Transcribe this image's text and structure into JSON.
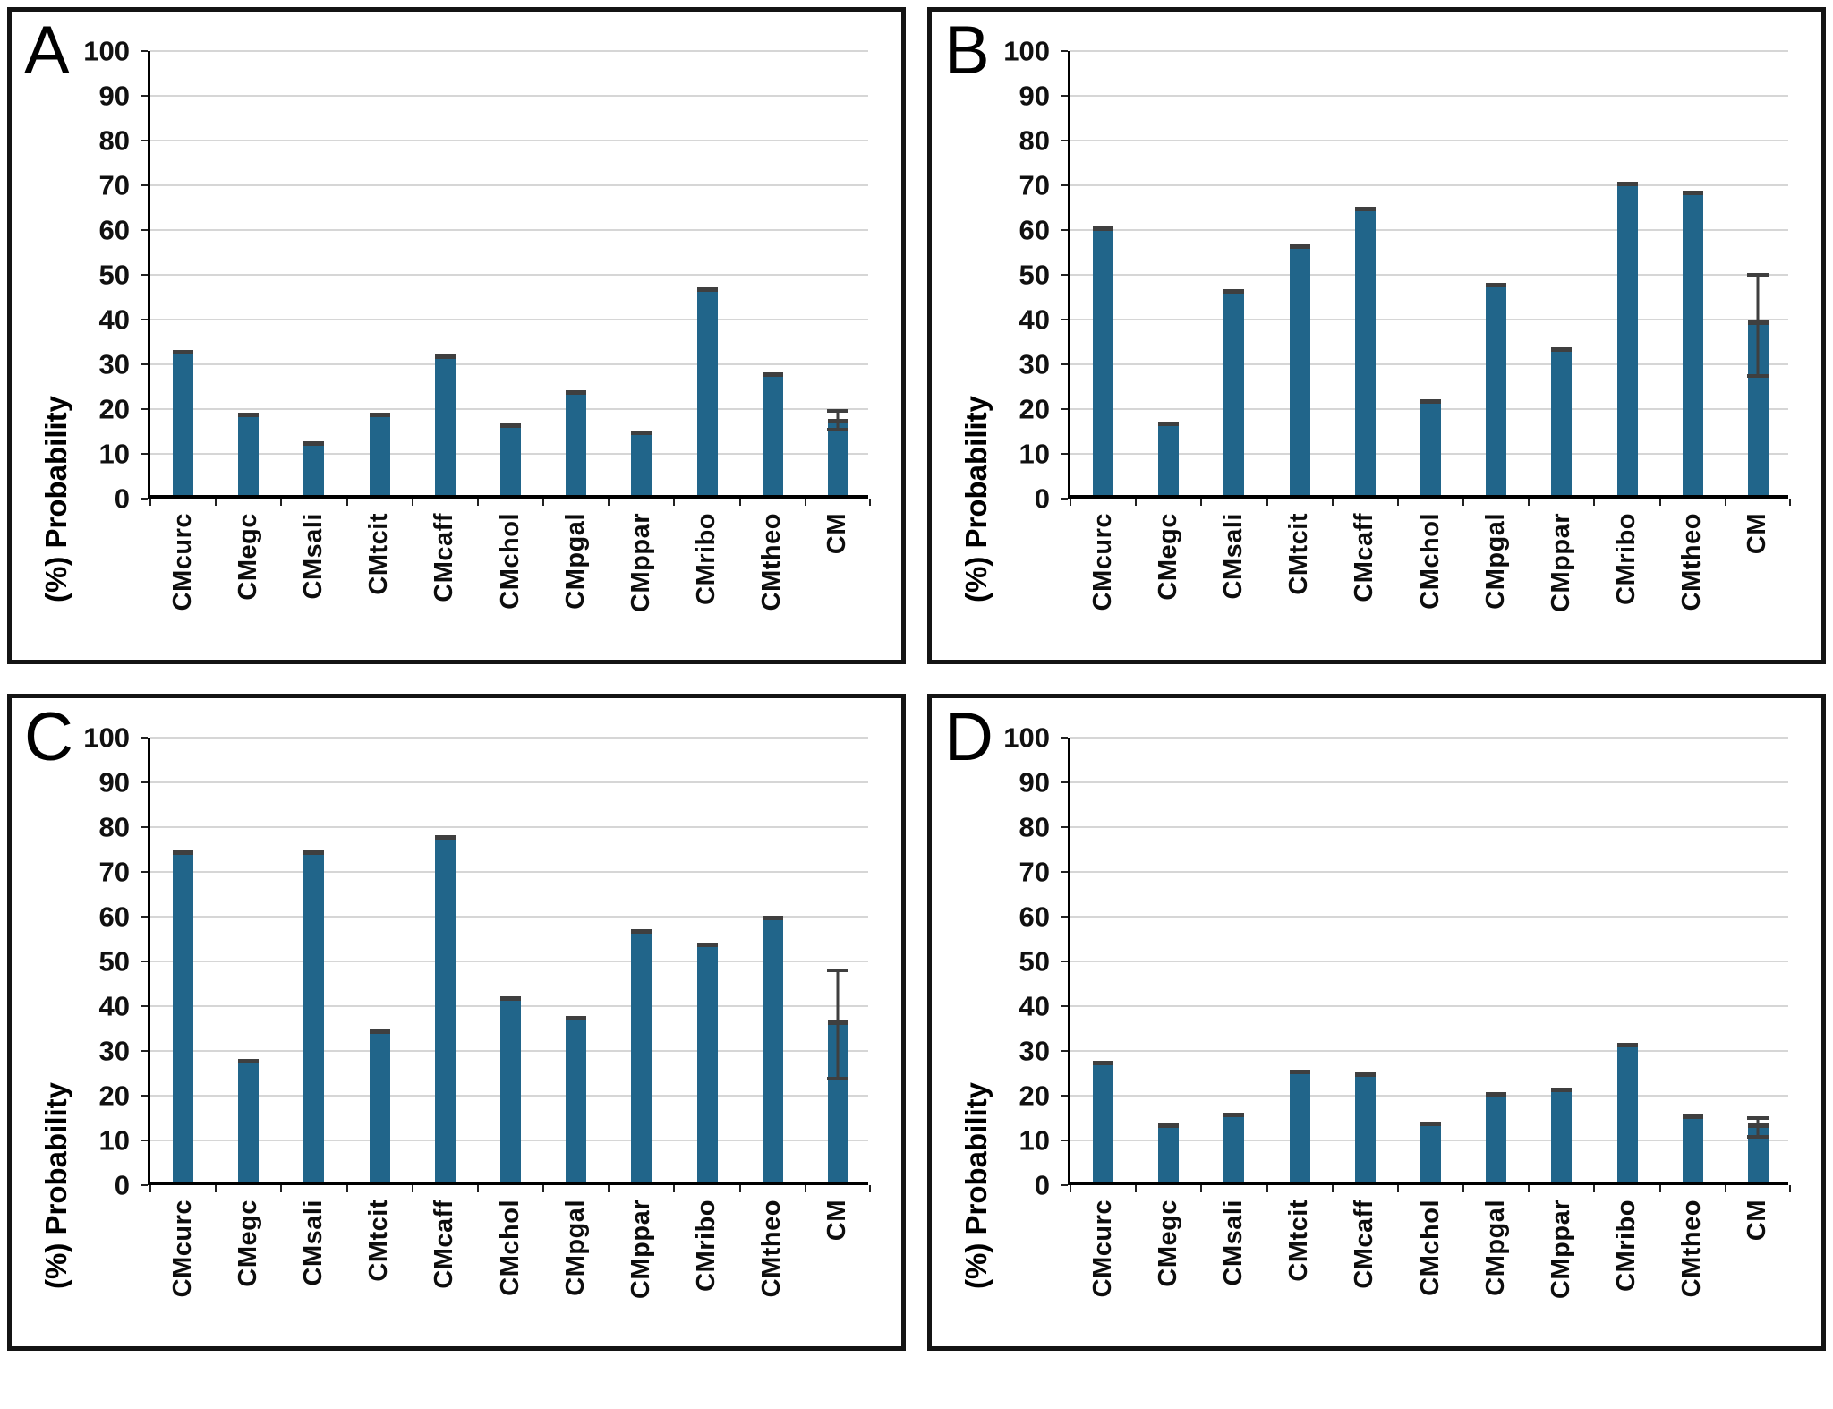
{
  "figure": {
    "ylabel": "(%) Probability",
    "ymin": 0,
    "ymax": 100,
    "ytick_step": 10,
    "grid": true,
    "legend": "none"
  },
  "colors": {
    "bar": "#21658a",
    "bar_cap": "#3f3f3f",
    "error": "#3f3f3f",
    "gridline": "#d6d6d6",
    "axis": "#000000",
    "panel_border": "#141414",
    "background": "#ffffff"
  },
  "chart_data": [
    {
      "type": "bar",
      "panel": "A",
      "ylabel": "(%) Probability",
      "ylim": [
        0,
        100
      ],
      "yticks": [
        0,
        10,
        20,
        30,
        40,
        50,
        60,
        70,
        80,
        90,
        100
      ],
      "categories": [
        "CMcurc",
        "CMegc",
        "CMsali",
        "CMtcit",
        "CMcaff",
        "CMchol",
        "CMpgal",
        "CMppar",
        "CMribo",
        "CMtheo",
        "CM"
      ],
      "values": [
        32.5,
        18.5,
        12,
        18.5,
        31.5,
        16,
        23.5,
        14.5,
        46.5,
        27.5,
        17
      ],
      "error_bar": {
        "category": "CM",
        "low": 15,
        "high": 20
      }
    },
    {
      "type": "bar",
      "panel": "B",
      "ylabel": "(%) Probability",
      "ylim": [
        0,
        100
      ],
      "yticks": [
        0,
        10,
        20,
        30,
        40,
        50,
        60,
        70,
        80,
        90,
        100
      ],
      "categories": [
        "CMcurc",
        "CMegc",
        "CMsali",
        "CMtcit",
        "CMcaff",
        "CMchol",
        "CMpgal",
        "CMppar",
        "CMribo",
        "CMtheo",
        "CM"
      ],
      "values": [
        60,
        16.5,
        46,
        56,
        64.5,
        21.5,
        47.5,
        33,
        70,
        68,
        39
      ],
      "error_bar": {
        "category": "CM",
        "low": 27,
        "high": 50.5
      }
    },
    {
      "type": "bar",
      "panel": "C",
      "ylabel": "(%) Probability",
      "ylim": [
        0,
        100
      ],
      "yticks": [
        0,
        10,
        20,
        30,
        40,
        50,
        60,
        70,
        80,
        90,
        100
      ],
      "categories": [
        "CMcurc",
        "CMegc",
        "CMsali",
        "CMtcit",
        "CMcaff",
        "CMchol",
        "CMpgal",
        "CMppar",
        "CMribo",
        "CMtheo",
        "CM"
      ],
      "values": [
        74,
        27.5,
        74,
        34,
        77.5,
        41.5,
        37,
        56.5,
        53.5,
        59.5,
        36
      ],
      "error_bar": {
        "category": "CM",
        "low": 23.5,
        "high": 48.5
      }
    },
    {
      "type": "bar",
      "panel": "D",
      "ylabel": "(%) Probability",
      "ylim": [
        0,
        100
      ],
      "yticks": [
        0,
        10,
        20,
        30,
        40,
        50,
        60,
        70,
        80,
        90,
        100
      ],
      "categories": [
        "CMcurc",
        "CMegc",
        "CMsali",
        "CMtcit",
        "CMcaff",
        "CMchol",
        "CMpgal",
        "CMppar",
        "CMribo",
        "CMtheo",
        "CM"
      ],
      "values": [
        27,
        13,
        15.5,
        25,
        24.5,
        13.5,
        20,
        21,
        31,
        15,
        13
      ],
      "error_bar": {
        "category": "CM",
        "low": 10.5,
        "high": 15.5
      }
    }
  ]
}
